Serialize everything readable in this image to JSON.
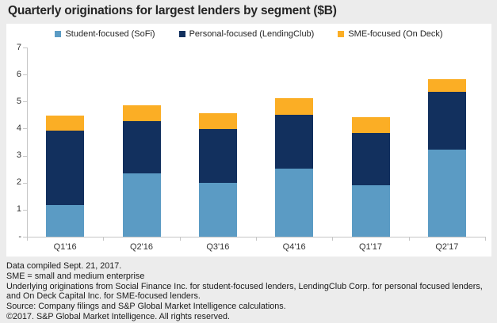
{
  "chart_data": {
    "type": "bar",
    "stacked": true,
    "title": "Quarterly originations for largest lenders by segment ($B)",
    "categories": [
      "Q1'16",
      "Q2'16",
      "Q3'16",
      "Q4'16",
      "Q1'17",
      "Q2'17"
    ],
    "series": [
      {
        "key": "student-focused-sofi",
        "name": "Student-focused (SoFi)",
        "color": "#5b9bc4",
        "values": [
          1.16,
          2.33,
          1.98,
          2.52,
          1.89,
          3.22
        ]
      },
      {
        "key": "personal-focused-lendingclub",
        "name": "Personal-focused (LendingClub)",
        "color": "#12305e",
        "values": [
          2.76,
          1.96,
          1.99,
          1.98,
          1.95,
          2.14
        ]
      },
      {
        "key": "sme-focused-ondeck",
        "name": "SME-focused (On Deck)",
        "color": "#fbae25",
        "values": [
          0.57,
          0.58,
          0.6,
          0.64,
          0.57,
          0.46
        ]
      }
    ],
    "xlabel": "",
    "ylabel": "",
    "ylim": [
      0,
      7
    ],
    "ytick_labels": [
      "-",
      "1",
      "2",
      "3",
      "4",
      "5",
      "6",
      "7"
    ],
    "grid": false,
    "legend_position": "top"
  },
  "footer": {
    "notes": [
      "Data compiled Sept. 21, 2017.",
      "SME =  small and medium enterprise",
      "Underlying originations from Social Finance Inc. for student-focused lenders, LendingClub Corp. for personal focused lenders, and On Deck Capital Inc. for SME-focused lenders.",
      "Source: Company filings and S&P Global Market Intelligence calculations.",
      "©2017. S&P Global Market Intelligence. All rights reserved."
    ]
  },
  "colors": {
    "background": "#ececec",
    "panel": "#ffffff",
    "axis": "#c6c6c6",
    "title_text": "#252525",
    "tick_text": "#333333",
    "footer_text": "#1a1a1a"
  }
}
